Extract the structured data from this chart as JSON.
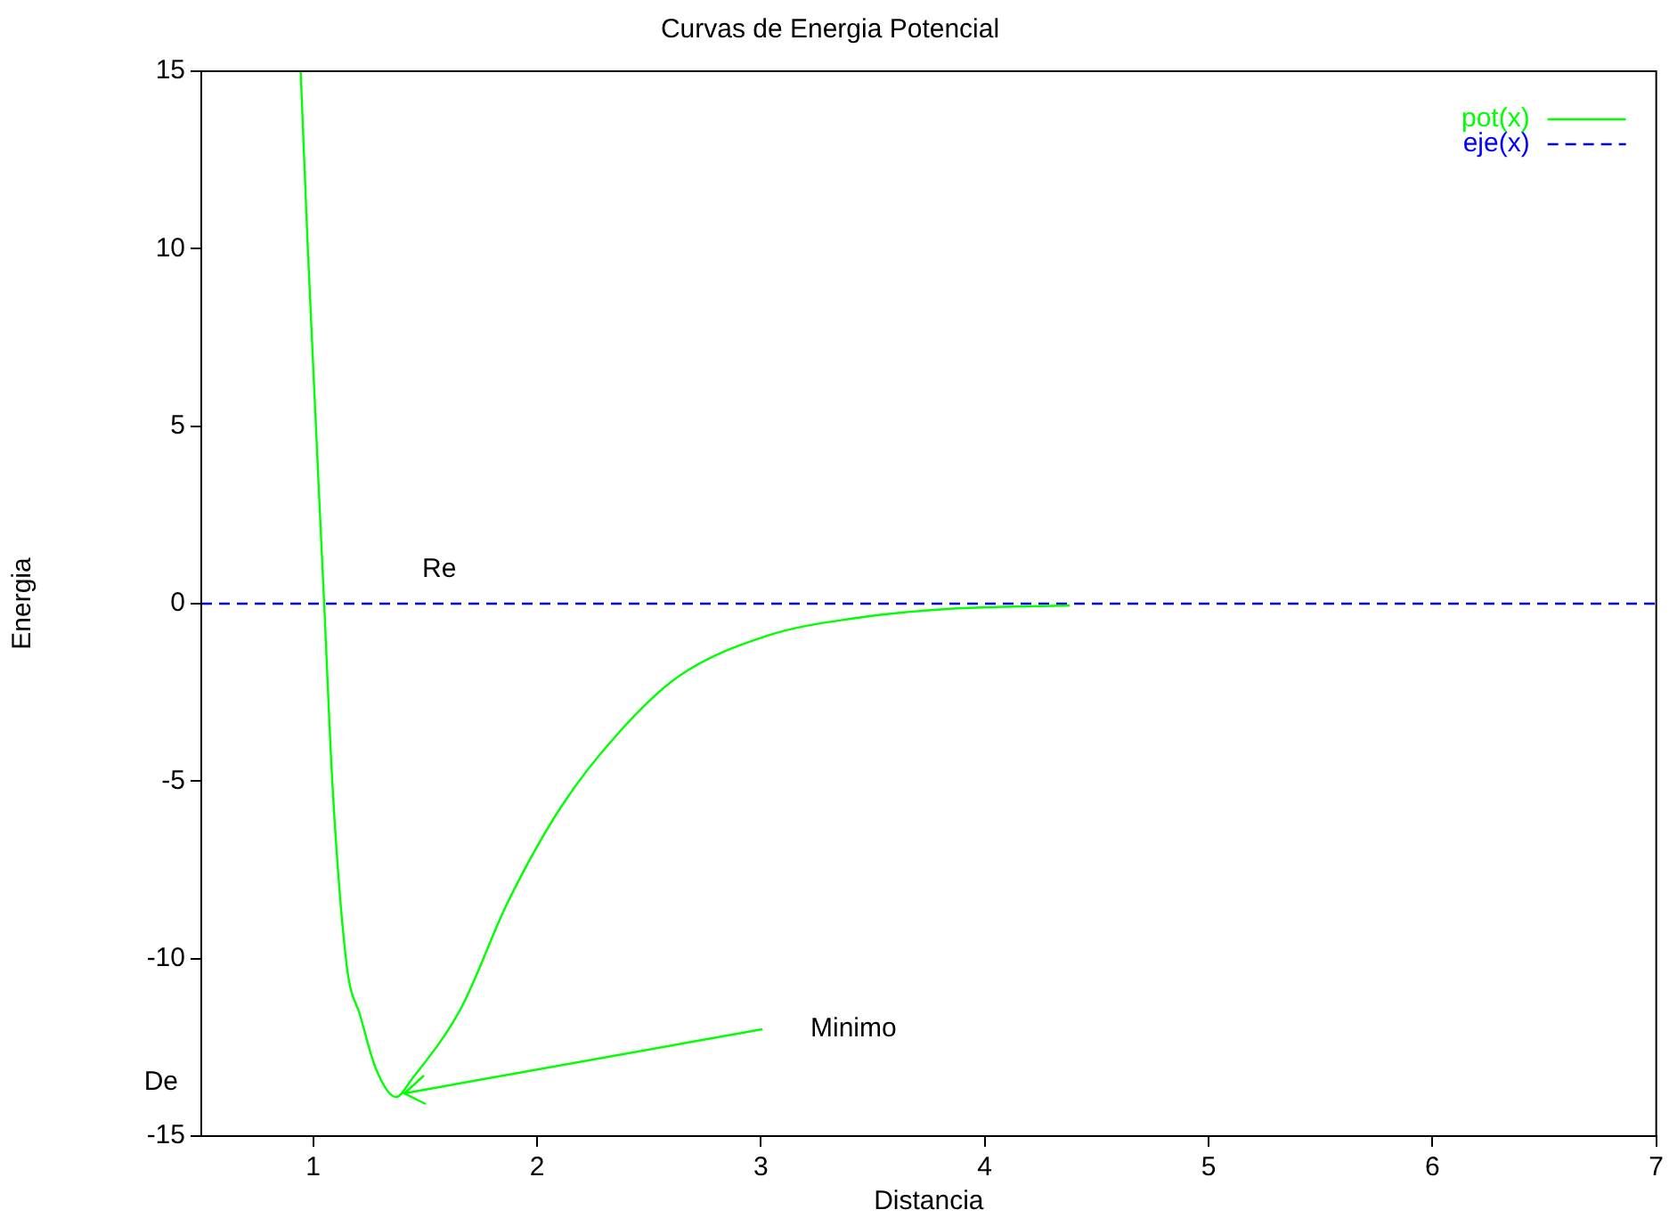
{
  "chart_data": {
    "type": "line",
    "title": "Curvas de Energia Potencial",
    "xlabel": "Distancia",
    "ylabel": "Energia",
    "xlim": [
      0.5,
      7
    ],
    "xticks": [
      1,
      2,
      3,
      4,
      5,
      6,
      7
    ],
    "ylim": [
      -15,
      15
    ],
    "yticks": [
      -15,
      -10,
      -5,
      0,
      5,
      10,
      15
    ],
    "grid": false,
    "legend": "top right",
    "marker": "none",
    "series": [
      {
        "name": "pot(x)",
        "color": "#00ff00",
        "line_style": "solid",
        "x": [
          0.944,
          0.976,
          1.049,
          1.087,
          1.15,
          1.21,
          1.28,
          1.37,
          1.44,
          1.66,
          1.87,
          2.11,
          2.37,
          2.63,
          3.03,
          3.43,
          3.83,
          4.38
        ],
        "values": [
          15,
          10,
          0,
          -5.2,
          -10.2,
          -11.6,
          -13.1,
          -13.9,
          -13.4,
          -11.4,
          -8.4,
          -5.7,
          -3.6,
          -2.06,
          -0.9,
          -0.4,
          -0.15,
          -0.05
        ]
      },
      {
        "name": "eje(x)",
        "color": "#0000ff",
        "line_style": "dashed",
        "x": [
          0.5,
          7
        ],
        "values": [
          0,
          0
        ]
      }
    ],
    "annotations": [
      "Re",
      "De",
      "Minimo"
    ]
  }
}
